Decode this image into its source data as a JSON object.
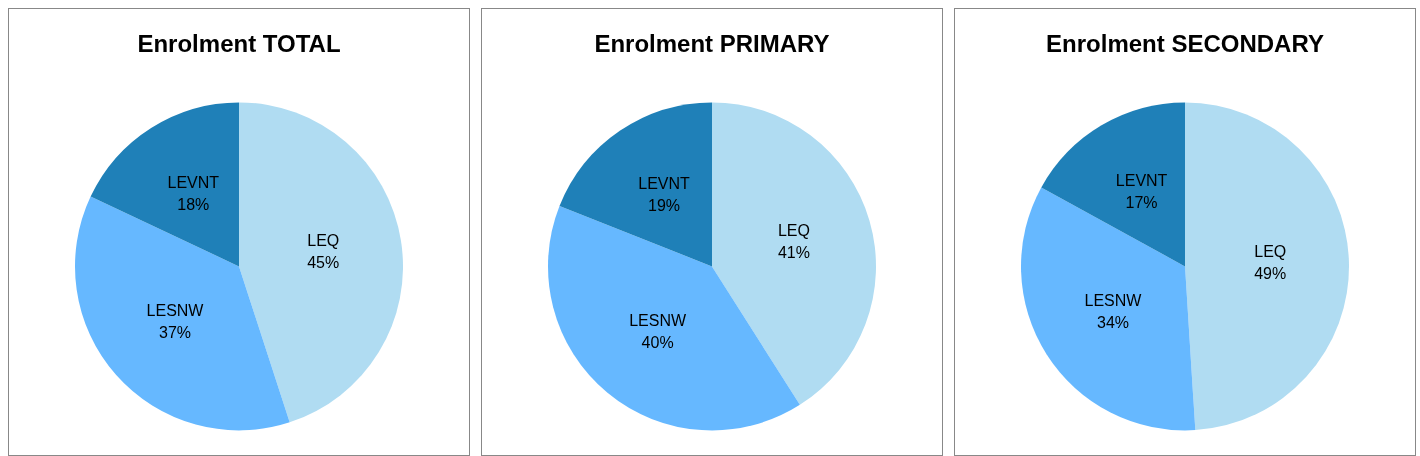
{
  "chart_data": [
    {
      "type": "pie",
      "title": "Enrolment TOTAL",
      "categories": [
        "LEQ",
        "LESNW",
        "LEVNT"
      ],
      "values": [
        45,
        37,
        18
      ],
      "colors": [
        "#b0dcf2",
        "#66b8ff",
        "#1f80b8"
      ],
      "value_labels": [
        "45%",
        "37%",
        "18%"
      ],
      "legend": false
    },
    {
      "type": "pie",
      "title": "Enrolment PRIMARY",
      "categories": [
        "LEQ",
        "LESNW",
        "LEVNT"
      ],
      "values": [
        41,
        40,
        19
      ],
      "colors": [
        "#b0dcf2",
        "#66b8ff",
        "#1f80b8"
      ],
      "value_labels": [
        "41%",
        "40%",
        "19%"
      ],
      "legend": false
    },
    {
      "type": "pie",
      "title": "Enrolment SECONDARY",
      "categories": [
        "LEQ",
        "LESNW",
        "LEVNT"
      ],
      "values": [
        49,
        34,
        17
      ],
      "colors": [
        "#b0dcf2",
        "#66b8ff",
        "#1f80b8"
      ],
      "value_labels": [
        "49%",
        "34%",
        "17%"
      ],
      "legend": false
    }
  ]
}
